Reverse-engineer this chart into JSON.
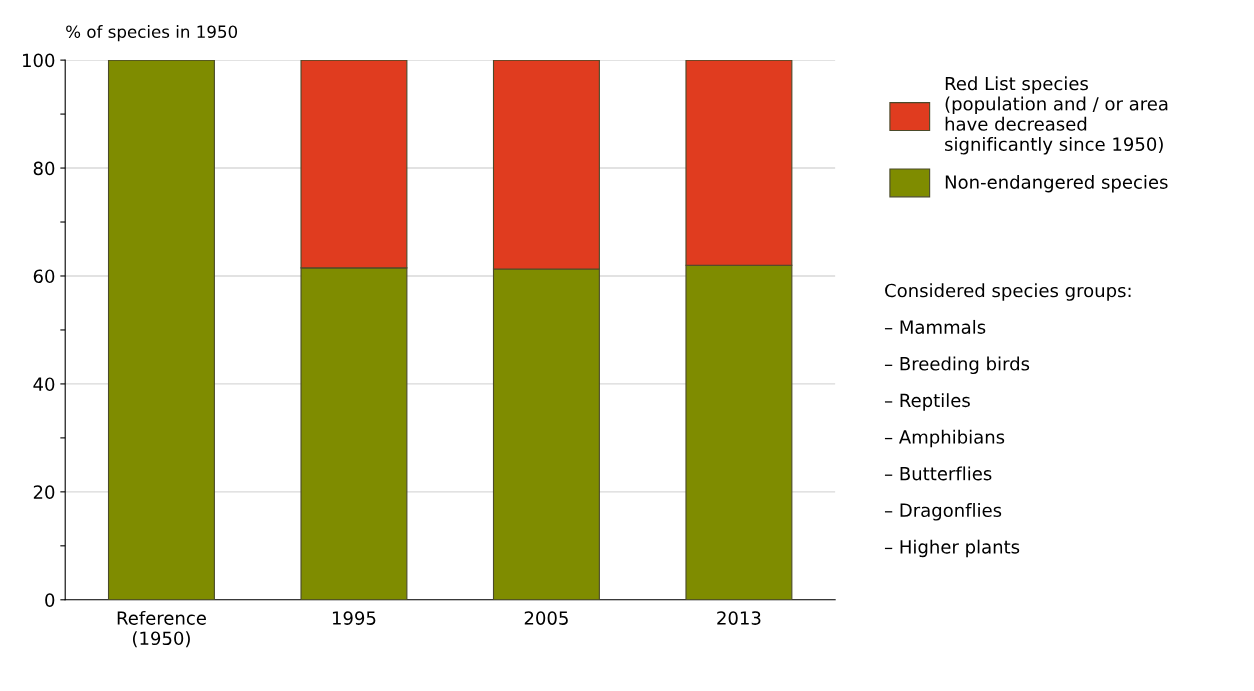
{
  "chart_data": {
    "type": "bar",
    "stacked": true,
    "ylabel": "% of species in 1950",
    "categories": [
      "Reference\n(1950)",
      "1995",
      "2005",
      "2013"
    ],
    "series": [
      {
        "name": "Non-endangered species",
        "color": "#7f8c00",
        "values": [
          100,
          61.5,
          61.3,
          62.0
        ]
      },
      {
        "name": "Red List species\n(population and / or area\nhave decreased\nsignificantly since 1950)",
        "color": "#e03c1f",
        "values": [
          null,
          38.5,
          38.7,
          38.0
        ]
      }
    ],
    "ylim": [
      0,
      100
    ],
    "yticks": [
      0,
      {
        "value": 10,
        "label": null
      },
      20,
      {
        "value": 30,
        "label": null
      },
      40,
      {
        "value": 50,
        "label": null
      },
      60,
      {
        "value": 70,
        "label": null
      },
      80,
      {
        "value": 90,
        "label": null
      },
      100
    ],
    "grid": "y",
    "legend": "right",
    "annotations": [
      "Considered species groups:",
      "– Mammals",
      "– Breeding birds",
      "– Reptiles",
      "– Amphibians",
      "– Butterflies",
      "– Dragonflies",
      "– Higher plants"
    ]
  }
}
